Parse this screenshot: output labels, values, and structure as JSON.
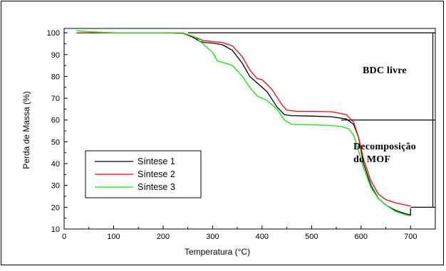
{
  "chart_data": {
    "type": "line",
    "xlabel": "Temperatura (°C)",
    "ylabel": "Perda de Massa (%)",
    "xlim": [
      0,
      750
    ],
    "ylim": [
      10,
      102
    ],
    "xticks": [
      0,
      100,
      200,
      300,
      400,
      500,
      600,
      700
    ],
    "yticks": [
      10,
      20,
      30,
      40,
      50,
      60,
      70,
      80,
      90,
      100
    ],
    "grid": false,
    "legend_position": "bottom-left",
    "series": [
      {
        "name": "Síntese 1",
        "color": "#000000",
        "x": [
          25,
          50,
          100,
          150,
          200,
          240,
          260,
          275,
          285,
          300,
          320,
          340,
          360,
          375,
          390,
          410,
          430,
          445,
          460,
          500,
          540,
          570,
          585,
          595,
          605,
          620,
          635,
          650,
          670,
          690,
          700,
          700
        ],
        "y": [
          100,
          100,
          100,
          100,
          100,
          99.8,
          98,
          96,
          95.5,
          95.3,
          94.5,
          92,
          86,
          80,
          77,
          73,
          66,
          62.5,
          62,
          61.8,
          61.5,
          60.5,
          58,
          52,
          40,
          30,
          24,
          21,
          18.5,
          17,
          16.5,
          19.5
        ]
      },
      {
        "name": "Síntese 2",
        "color": "#ff0000",
        "x": [
          25,
          50,
          100,
          150,
          200,
          240,
          265,
          280,
          300,
          320,
          340,
          360,
          375,
          390,
          400,
          420,
          440,
          450,
          470,
          500,
          540,
          570,
          585,
          595,
          605,
          620,
          635,
          650,
          670,
          690,
          700,
          700
        ],
        "y": [
          100,
          100,
          100,
          100,
          100,
          99.8,
          98,
          96.5,
          96,
          95.5,
          94,
          89,
          83,
          79,
          78.5,
          74,
          67,
          64.5,
          64,
          64,
          63.8,
          62.5,
          59,
          52,
          42,
          32,
          26,
          23.5,
          22,
          21,
          20.5,
          20.5
        ]
      },
      {
        "name": "Síntese 3",
        "color": "#00ee00",
        "x": [
          25,
          50,
          100,
          150,
          200,
          240,
          265,
          285,
          300,
          310,
          320,
          340,
          360,
          375,
          390,
          410,
          430,
          445,
          460,
          500,
          540,
          560,
          575,
          585,
          595,
          605,
          620,
          635,
          650,
          670,
          690,
          700
        ],
        "y": [
          101,
          100.5,
          100,
          100,
          100,
          100,
          98,
          94,
          91,
          87,
          86.5,
          85,
          80,
          75,
          71,
          69,
          65,
          60,
          58,
          57.8,
          57.5,
          57,
          56,
          53,
          46,
          38,
          29,
          24,
          21,
          18,
          16.5,
          16
        ]
      }
    ],
    "reference_lines": [
      {
        "y": 100,
        "x_start": 250,
        "x_end": 750
      },
      {
        "y": 60,
        "x_start": 560,
        "x_end": 750
      },
      {
        "y": 20,
        "x_start": 700,
        "x_end": 750
      }
    ],
    "bracket_x": 745,
    "annotations": [
      {
        "text": "BDC livre"
      },
      {
        "text": "Decomposição"
      },
      {
        "text": "do MOF"
      }
    ]
  }
}
